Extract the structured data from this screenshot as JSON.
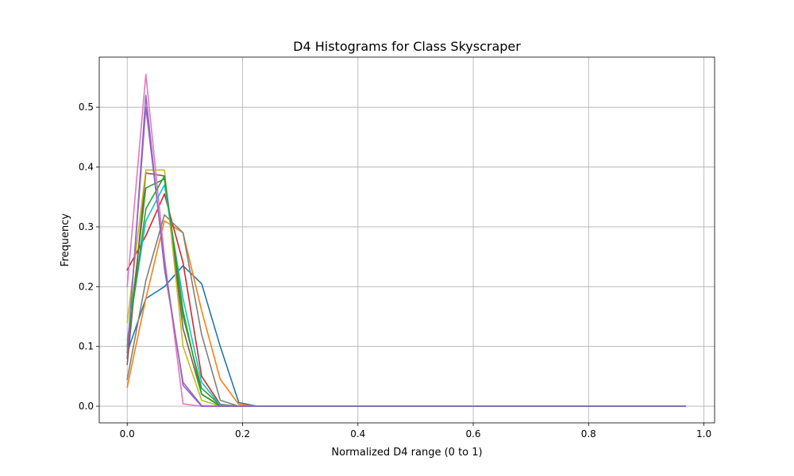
{
  "chart_data": {
    "type": "line",
    "title": "D4 Histograms for Class Skyscraper",
    "xlabel": "Normalized D4 range (0 to 1)",
    "ylabel": "Frequency",
    "xlim": [
      -0.0485,
      1.0185
    ],
    "ylim": [
      -0.0278,
      0.5838
    ],
    "grid": true,
    "x_ticks": [
      0.0,
      0.2,
      0.4,
      0.6,
      0.8,
      1.0
    ],
    "x_tick_labels": [
      "0.0",
      "0.2",
      "0.4",
      "0.6",
      "0.8",
      "1.0"
    ],
    "y_ticks": [
      0.0,
      0.1,
      0.2,
      0.3,
      0.4,
      0.5
    ],
    "y_tick_labels": [
      "0.0",
      "0.1",
      "0.2",
      "0.3",
      "0.4",
      "0.5"
    ],
    "x": [
      0.0,
      0.0323,
      0.0645,
      0.0968,
      0.129,
      0.1613,
      0.1935,
      0.2258,
      0.2581,
      0.2903,
      0.3226,
      0.3548,
      0.3871,
      0.4194,
      0.4516,
      0.4839,
      0.5161,
      0.5484,
      0.5806,
      0.6129,
      0.6452,
      0.6774,
      0.7097,
      0.7419,
      0.7742,
      0.8065,
      0.8387,
      0.871,
      0.9032,
      0.9355,
      0.9677
    ],
    "series": [
      {
        "color": "#1f77b4",
        "values": [
          0.09,
          0.18,
          0.2,
          0.235,
          0.205,
          0.1,
          0.006,
          0.0,
          0.0,
          0.0,
          0.0,
          0.0,
          0.0,
          0.0,
          0.0,
          0.0,
          0.0,
          0.0,
          0.0,
          0.0,
          0.0,
          0.0,
          0.0,
          0.0,
          0.0,
          0.0,
          0.0,
          0.0,
          0.0,
          0.0,
          0.0
        ]
      },
      {
        "color": "#ff7f0e",
        "values": [
          0.032,
          0.18,
          0.31,
          0.29,
          0.16,
          0.045,
          0.003,
          0.0,
          0.0,
          0.0,
          0.0,
          0.0,
          0.0,
          0.0,
          0.0,
          0.0,
          0.0,
          0.0,
          0.0,
          0.0,
          0.0,
          0.0,
          0.0,
          0.0,
          0.0,
          0.0,
          0.0,
          0.0,
          0.0,
          0.0,
          0.0
        ]
      },
      {
        "color": "#2ca02c",
        "values": [
          0.1,
          0.365,
          0.38,
          0.15,
          0.03,
          0.002,
          0.0,
          0.0,
          0.0,
          0.0,
          0.0,
          0.0,
          0.0,
          0.0,
          0.0,
          0.0,
          0.0,
          0.0,
          0.0,
          0.0,
          0.0,
          0.0,
          0.0,
          0.0,
          0.0,
          0.0,
          0.0,
          0.0,
          0.0,
          0.0,
          0.0
        ]
      },
      {
        "color": "#d62728",
        "values": [
          0.228,
          0.285,
          0.355,
          0.24,
          0.05,
          0.003,
          0.0,
          0.0,
          0.0,
          0.0,
          0.0,
          0.0,
          0.0,
          0.0,
          0.0,
          0.0,
          0.0,
          0.0,
          0.0,
          0.0,
          0.0,
          0.0,
          0.0,
          0.0,
          0.0,
          0.0,
          0.0,
          0.0,
          0.0,
          0.0,
          0.0
        ]
      },
      {
        "color": "#9467bd",
        "values": [
          0.08,
          0.52,
          0.23,
          0.04,
          0.001,
          0.0,
          0.0,
          0.0,
          0.0,
          0.0,
          0.0,
          0.0,
          0.0,
          0.0,
          0.0,
          0.0,
          0.0,
          0.0,
          0.0,
          0.0,
          0.0,
          0.0,
          0.0,
          0.0,
          0.0,
          0.0,
          0.0,
          0.0,
          0.0,
          0.0,
          0.0
        ]
      },
      {
        "color": "#8c564b",
        "values": [
          0.07,
          0.39,
          0.385,
          0.13,
          0.02,
          0.001,
          0.0,
          0.0,
          0.0,
          0.0,
          0.0,
          0.0,
          0.0,
          0.0,
          0.0,
          0.0,
          0.0,
          0.0,
          0.0,
          0.0,
          0.0,
          0.0,
          0.0,
          0.0,
          0.0,
          0.0,
          0.0,
          0.0,
          0.0,
          0.0,
          0.0
        ]
      },
      {
        "color": "#e377c2",
        "values": [
          0.2,
          0.555,
          0.25,
          0.004,
          0.0,
          0.0,
          0.0,
          0.0,
          0.0,
          0.0,
          0.0,
          0.0,
          0.0,
          0.0,
          0.0,
          0.0,
          0.0,
          0.0,
          0.0,
          0.0,
          0.0,
          0.0,
          0.0,
          0.0,
          0.0,
          0.0,
          0.0,
          0.0,
          0.0,
          0.0,
          0.0
        ]
      },
      {
        "color": "#7f7f7f",
        "values": [
          0.045,
          0.21,
          0.32,
          0.29,
          0.12,
          0.01,
          0.0,
          0.0,
          0.0,
          0.0,
          0.0,
          0.0,
          0.0,
          0.0,
          0.0,
          0.0,
          0.0,
          0.0,
          0.0,
          0.0,
          0.0,
          0.0,
          0.0,
          0.0,
          0.0,
          0.0,
          0.0,
          0.0,
          0.0,
          0.0,
          0.0
        ]
      },
      {
        "color": "#bcbd22",
        "values": [
          0.14,
          0.395,
          0.395,
          0.1,
          0.01,
          0.0,
          0.0,
          0.0,
          0.0,
          0.0,
          0.0,
          0.0,
          0.0,
          0.0,
          0.0,
          0.0,
          0.0,
          0.0,
          0.0,
          0.0,
          0.0,
          0.0,
          0.0,
          0.0,
          0.0,
          0.0,
          0.0,
          0.0,
          0.0,
          0.0,
          0.0
        ]
      },
      {
        "color": "#17becf",
        "values": [
          0.11,
          0.31,
          0.37,
          0.18,
          0.04,
          0.002,
          0.0,
          0.0,
          0.0,
          0.0,
          0.0,
          0.0,
          0.0,
          0.0,
          0.0,
          0.0,
          0.0,
          0.0,
          0.0,
          0.0,
          0.0,
          0.0,
          0.0,
          0.0,
          0.0,
          0.0,
          0.0,
          0.0,
          0.0,
          0.0,
          0.0
        ]
      },
      {
        "color": "#2ca02c",
        "values": [
          0.1,
          0.33,
          0.385,
          0.16,
          0.02,
          0.0,
          0.0,
          0.0,
          0.0,
          0.0,
          0.0,
          0.0,
          0.0,
          0.0,
          0.0,
          0.0,
          0.0,
          0.0,
          0.0,
          0.0,
          0.0,
          0.0,
          0.0,
          0.0,
          0.0,
          0.0,
          0.0,
          0.0,
          0.0,
          0.0,
          0.0
        ]
      },
      {
        "color": "#9467bd",
        "values": [
          0.09,
          0.5,
          0.24,
          0.035,
          0.0,
          0.0,
          0.0,
          0.0,
          0.0,
          0.0,
          0.0,
          0.0,
          0.0,
          0.0,
          0.0,
          0.0,
          0.0,
          0.0,
          0.0,
          0.0,
          0.0,
          0.0,
          0.0,
          0.0,
          0.0,
          0.0,
          0.0,
          0.0,
          0.0,
          0.0,
          0.0
        ]
      }
    ]
  }
}
